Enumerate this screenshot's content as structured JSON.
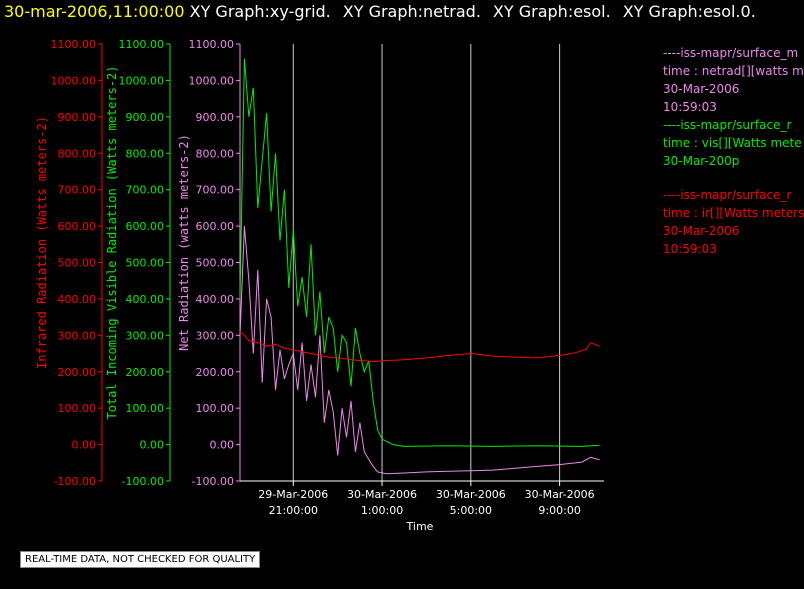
{
  "title": {
    "time": "30-mar-2006,11:00:00",
    "graphs": [
      "XY Graph:xy-grid.",
      "XY Graph:netrad.",
      "XY Graph:esol.",
      "XY Graph:esol.0."
    ]
  },
  "footer": "REAL-TIME DATA, NOT CHECKED FOR QUALITY",
  "colors": {
    "ir": "#ff0000",
    "vis": "#00ee00",
    "net": "#ee88ee",
    "title": "#ffff00"
  },
  "legend": [
    {
      "lines": [
        "----iss-mapr/surface_m",
        "time : netrad[][watts m",
        "30-Mar-2006",
        "10:59:03"
      ],
      "color": "#ee88ee"
    },
    {
      "lines": [
        "----iss-mapr/surface_r",
        "time : vis[][Watts mete",
        "30-Mar-200p"
      ],
      "color": "#00ee00"
    },
    {
      "lines": [
        "----iss-mapr/surface_r",
        "time : ir[][Watts meters",
        "30-Mar-2006",
        "10:59:03"
      ],
      "color": "#ff0000"
    }
  ],
  "chart_data": {
    "type": "line",
    "xlabel": "Time",
    "x_ticks": [
      {
        "line1": "29-Mar-2006",
        "line2": "21:00:00"
      },
      {
        "line1": "30-Mar-2006",
        "line2": "1:00:00"
      },
      {
        "line1": "30-Mar-2006",
        "line2": "5:00:00"
      },
      {
        "line1": "30-Mar-2006",
        "line2": "9:00:00"
      }
    ],
    "x_range_hours": [
      18.6,
      11.0
    ],
    "ylim": [
      -100,
      1100
    ],
    "y_ticks": [
      "1100.00",
      "1000.00",
      "900.00",
      "800.00",
      "700.00",
      "600.00",
      "500.00",
      "400.00",
      "300.00",
      "200.00",
      "100.00",
      "0.00",
      "-100.00"
    ],
    "y_axes": [
      {
        "label": "Infrared Radiation (Watts meters-2)",
        "color": "#ff0000"
      },
      {
        "label": "Total Incoming Visible Radiation (Watts meters-2)",
        "color": "#00ee00"
      },
      {
        "label": "Net Radiation (watts meters-2)",
        "color": "#ee88ee"
      }
    ],
    "vertical_grid": true,
    "series": [
      {
        "name": "vis",
        "color": "#00ee00",
        "points": [
          [
            18.6,
            400
          ],
          [
            18.8,
            1060
          ],
          [
            19.0,
            900
          ],
          [
            19.2,
            980
          ],
          [
            19.4,
            650
          ],
          [
            19.6,
            780
          ],
          [
            19.8,
            910
          ],
          [
            20.0,
            640
          ],
          [
            20.2,
            800
          ],
          [
            20.4,
            560
          ],
          [
            20.6,
            700
          ],
          [
            20.8,
            430
          ],
          [
            21.0,
            590
          ],
          [
            21.2,
            380
          ],
          [
            21.4,
            460
          ],
          [
            21.6,
            350
          ],
          [
            21.8,
            550
          ],
          [
            22.0,
            300
          ],
          [
            22.2,
            420
          ],
          [
            22.4,
            250
          ],
          [
            22.6,
            350
          ],
          [
            22.8,
            320
          ],
          [
            23.0,
            200
          ],
          [
            23.2,
            300
          ],
          [
            23.4,
            280
          ],
          [
            23.6,
            160
          ],
          [
            23.8,
            320
          ],
          [
            24.0,
            250
          ],
          [
            24.2,
            200
          ],
          [
            24.4,
            230
          ],
          [
            24.6,
            120
          ],
          [
            24.8,
            40
          ],
          [
            25.0,
            15
          ],
          [
            25.5,
            0
          ],
          [
            26,
            -5
          ],
          [
            28,
            -3
          ],
          [
            30,
            -5
          ],
          [
            32,
            -3
          ],
          [
            34,
            -5
          ],
          [
            34.8,
            -2
          ]
        ]
      },
      {
        "name": "net",
        "color": "#ee88ee",
        "points": [
          [
            18.6,
            300
          ],
          [
            18.8,
            600
          ],
          [
            19.0,
            450
          ],
          [
            19.2,
            250
          ],
          [
            19.4,
            480
          ],
          [
            19.6,
            170
          ],
          [
            19.8,
            400
          ],
          [
            20.0,
            350
          ],
          [
            20.2,
            150
          ],
          [
            20.4,
            260
          ],
          [
            20.6,
            180
          ],
          [
            20.8,
            220
          ],
          [
            21.0,
            250
          ],
          [
            21.2,
            150
          ],
          [
            21.4,
            280
          ],
          [
            21.6,
            120
          ],
          [
            21.8,
            220
          ],
          [
            22.0,
            130
          ],
          [
            22.2,
            300
          ],
          [
            22.4,
            60
          ],
          [
            22.6,
            150
          ],
          [
            22.8,
            90
          ],
          [
            23.0,
            -30
          ],
          [
            23.2,
            100
          ],
          [
            23.4,
            20
          ],
          [
            23.6,
            120
          ],
          [
            23.8,
            -20
          ],
          [
            24.0,
            60
          ],
          [
            24.2,
            -20
          ],
          [
            24.4,
            -40
          ],
          [
            24.6,
            -60
          ],
          [
            24.8,
            -75
          ],
          [
            25.2,
            -80
          ],
          [
            26,
            -78
          ],
          [
            27,
            -75
          ],
          [
            28,
            -73
          ],
          [
            29,
            -72
          ],
          [
            30,
            -70
          ],
          [
            31,
            -65
          ],
          [
            32,
            -60
          ],
          [
            33,
            -55
          ],
          [
            34,
            -48
          ],
          [
            34.4,
            -35
          ],
          [
            34.8,
            -42
          ]
        ]
      },
      {
        "name": "ir",
        "color": "#ff0000",
        "points": [
          [
            18.6,
            310
          ],
          [
            18.8,
            300
          ],
          [
            19.0,
            285
          ],
          [
            19.4,
            280
          ],
          [
            19.8,
            270
          ],
          [
            20.2,
            275
          ],
          [
            20.6,
            265
          ],
          [
            21.0,
            260
          ],
          [
            21.4,
            255
          ],
          [
            21.8,
            250
          ],
          [
            22.2,
            245
          ],
          [
            22.6,
            240
          ],
          [
            23.0,
            238
          ],
          [
            23.4,
            235
          ],
          [
            23.8,
            232
          ],
          [
            24.2,
            230
          ],
          [
            24.6,
            228
          ],
          [
            25.0,
            230
          ],
          [
            26,
            233
          ],
          [
            27,
            238
          ],
          [
            28,
            245
          ],
          [
            29,
            250
          ],
          [
            30,
            243
          ],
          [
            31,
            240
          ],
          [
            32,
            238
          ],
          [
            33,
            245
          ],
          [
            33.6,
            250
          ],
          [
            34.2,
            262
          ],
          [
            34.4,
            280
          ],
          [
            34.8,
            270
          ]
        ]
      }
    ]
  }
}
